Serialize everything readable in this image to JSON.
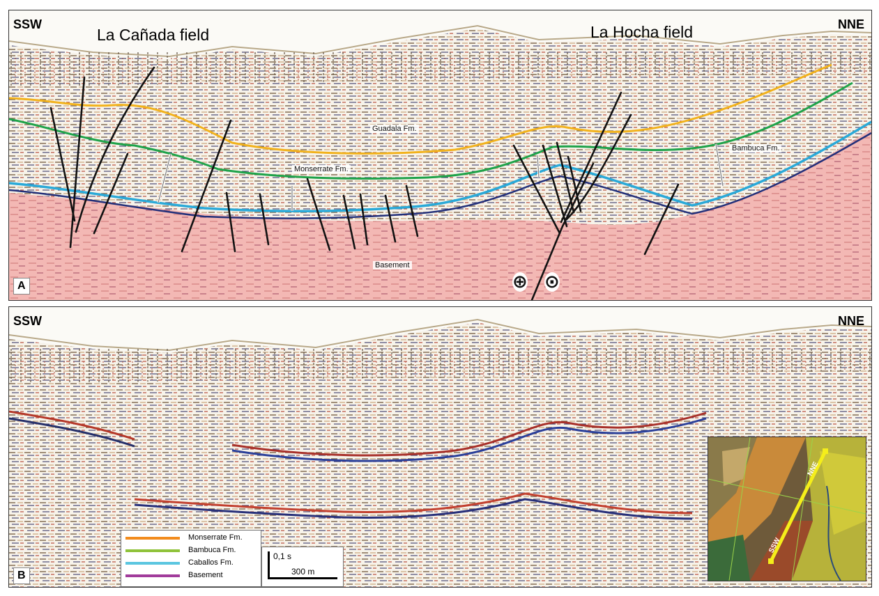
{
  "panel_a": {
    "left_dir": "SSW",
    "right_dir": "NNE",
    "field_left": "La Cañada field",
    "field_right": "La Hocha field",
    "label": "A",
    "formations": {
      "guadala": "Guadala Fm.",
      "monserrate": "Monserrate Fm.",
      "bambuca": "Bambuca Fm.",
      "basement": "Basement"
    },
    "symbols": {
      "into_page": "⊕",
      "out_of_page": "⊙"
    }
  },
  "panel_b": {
    "left_dir": "SSW",
    "right_dir": "NNE",
    "label": "B",
    "legend": [
      {
        "label": "Monserrate Fm.",
        "color": "#f28c1e"
      },
      {
        "label": "Bambuca Fm.",
        "color": "#8fc23a"
      },
      {
        "label": "Caballos Fm.",
        "color": "#5bc6e0"
      },
      {
        "label": "Basement",
        "color": "#a13b9b"
      }
    ],
    "scale": {
      "time": "0,1 s",
      "distance": "300 m"
    },
    "inset_map": {
      "label_top": "NNE",
      "label_bottom": "SSW",
      "line_color": "#f5ee1a"
    }
  },
  "colors": {
    "horizon_orange": "#f2b21c",
    "horizon_green": "#1fa34a",
    "horizon_cyan": "#2aa9d8",
    "basement_fill": "#f4b9b6",
    "fault": "#111111",
    "topography": "#b8a888"
  }
}
